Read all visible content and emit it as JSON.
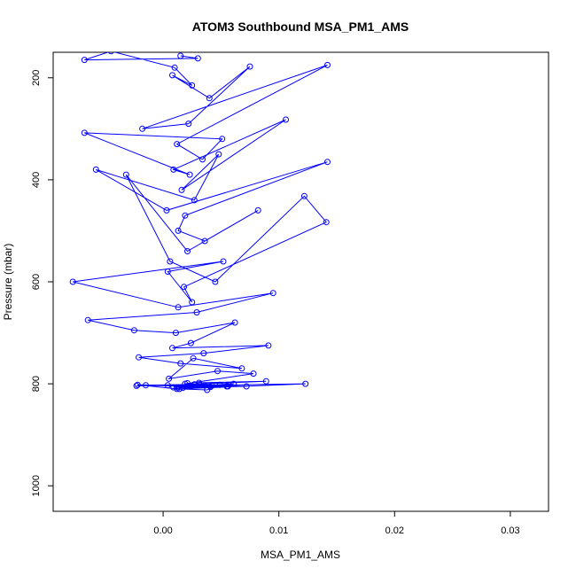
{
  "chart_data": {
    "type": "line",
    "title": "ATOM3 Southbound MSA_PM1_AMS",
    "xlabel": "MSA_PM1_AMS",
    "ylabel": "Pressure (mbar)",
    "xlim": [
      -0.0095,
      0.0333
    ],
    "ylim": [
      1050,
      150
    ],
    "y_reversed": true,
    "x_ticks": [
      0.0,
      0.01,
      0.02,
      0.03
    ],
    "x_tick_labels": [
      "0.00",
      "0.01",
      "0.02",
      "0.03"
    ],
    "y_ticks": [
      200,
      400,
      600,
      800,
      1000
    ],
    "y_tick_labels": [
      "200",
      "400",
      "600",
      "800",
      "1000"
    ],
    "series_style": {
      "color": "#0000ff",
      "marker": "open-circle"
    },
    "grid": false,
    "legend": "none",
    "series": [
      {
        "x": [
          0.0015,
          0.003,
          -0.0068,
          -0.0045,
          0.001,
          0.0025,
          0.0008,
          0.004,
          0.0075,
          0.0022,
          -0.0018,
          0.0142,
          0.0012,
          0.0034,
          0.0051,
          -0.0068,
          0.0023,
          0.0009,
          0.0106,
          0.0016,
          0.0048,
          0.0027,
          -0.0058,
          0.0003,
          0.0142,
          0.0019,
          0.0013,
          0.0036,
          0.0082,
          0.0021,
          -0.0032,
          0.0006,
          0.0045,
          0.0122,
          0.0141,
          0.0018,
          0.0025,
          0.0004,
          0.0052,
          -0.0078,
          0.0013,
          0.0095,
          0.0029,
          -0.0065,
          -0.0025,
          0.0011,
          0.0062,
          0.0024,
          0.0008,
          0.0091,
          0.0035,
          -0.0021,
          0.0015,
          0.0068,
          0.0026,
          0.0005,
          0.0047,
          0.0078,
          0.0019,
          0.0056,
          -0.0022,
          0.0012,
          0.0031,
          0.0089,
          0.0004,
          0.0023,
          0.0061,
          0.0017,
          0.0041,
          -0.0015,
          0.0027,
          0.0072,
          0.0009,
          0.0036,
          0.0123,
          0.0014,
          0.0038,
          0.0049,
          -0.0023,
          0.0031,
          0.0021,
          0.0055,
          0.0012,
          0.0042
        ],
        "y": [
          157,
          162,
          165,
          148,
          180,
          215,
          195,
          240,
          178,
          290,
          300,
          175,
          330,
          360,
          320,
          308,
          390,
          380,
          282,
          420,
          350,
          440,
          380,
          460,
          365,
          470,
          500,
          520,
          460,
          540,
          390,
          560,
          600,
          432,
          483,
          610,
          640,
          580,
          560,
          600,
          650,
          622,
          660,
          675,
          695,
          700,
          680,
          720,
          730,
          725,
          740,
          748,
          760,
          770,
          750,
          790,
          775,
          780,
          800,
          805,
          802,
          810,
          798,
          795,
          803,
          805,
          800,
          808,
          806,
          803,
          801,
          805,
          807,
          803,
          800,
          810,
          812,
          802,
          804,
          801,
          799,
          805,
          807,
          803
        ]
      }
    ]
  }
}
